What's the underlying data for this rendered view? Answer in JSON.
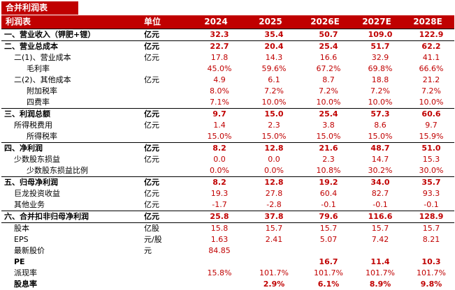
{
  "title": "合并利润表",
  "header": {
    "label": "利润表",
    "unit": "单位",
    "years": [
      "2024",
      "2025",
      "2026E",
      "2027E",
      "2028E"
    ]
  },
  "rows": [
    {
      "label": "一、营业收入（钾肥+锂）",
      "unit": "亿元",
      "values": [
        "32.3",
        "35.4",
        "50.7",
        "109.0",
        "122.9"
      ],
      "style": "major"
    },
    {
      "label": "二、营业总成本",
      "unit": "亿元",
      "values": [
        "22.7",
        "20.4",
        "25.4",
        "51.7",
        "62.2"
      ],
      "style": "major"
    },
    {
      "label": "二(1)、营业成本",
      "unit": "亿元",
      "values": [
        "17.8",
        "14.3",
        "16.6",
        "32.9",
        "41.1"
      ],
      "style": "minor1"
    },
    {
      "label": "毛利率",
      "unit": "",
      "values": [
        "45.0%",
        "59.6%",
        "67.2%",
        "69.8%",
        "66.6%"
      ],
      "style": "minor2"
    },
    {
      "label": "二(2)、其他成本",
      "unit": "亿元",
      "values": [
        "4.9",
        "6.1",
        "8.7",
        "18.8",
        "21.2"
      ],
      "style": "minor1"
    },
    {
      "label": "附加税率",
      "unit": "",
      "values": [
        "8.0%",
        "7.2%",
        "7.2%",
        "7.2%",
        "7.2%"
      ],
      "style": "minor2"
    },
    {
      "label": "四费率",
      "unit": "",
      "values": [
        "7.1%",
        "10.0%",
        "10.0%",
        "10.0%",
        "10.0%"
      ],
      "style": "minor2"
    },
    {
      "label": "三、利润总额",
      "unit": "亿元",
      "values": [
        "9.7",
        "15.0",
        "25.4",
        "57.3",
        "60.6"
      ],
      "style": "major"
    },
    {
      "label": "所得税费用",
      "unit": "亿元",
      "values": [
        "1.4",
        "2.3",
        "3.8",
        "8.6",
        "9.7"
      ],
      "style": "minor1"
    },
    {
      "label": "所得税率",
      "unit": "",
      "values": [
        "15.0%",
        "15.0%",
        "15.0%",
        "15.0%",
        "15.9%"
      ],
      "style": "minor2"
    },
    {
      "label": "四、净利润",
      "unit": "亿元",
      "values": [
        "8.2",
        "12.8",
        "21.6",
        "48.7",
        "51.0"
      ],
      "style": "major"
    },
    {
      "label": "少数股东损益",
      "unit": "亿元",
      "values": [
        "0.0",
        "0.0",
        "2.3",
        "14.7",
        "15.3"
      ],
      "style": "minor1"
    },
    {
      "label": "少数股东损益比例",
      "unit": "",
      "values": [
        "0.0%",
        "0.0%",
        "10.8%",
        "30.2%",
        "30.0%"
      ],
      "style": "minor2"
    },
    {
      "label": "五、归母净利润",
      "unit": "亿元",
      "values": [
        "8.2",
        "12.8",
        "19.2",
        "34.0",
        "35.7"
      ],
      "style": "major"
    },
    {
      "label": "巨龙投资收益",
      "unit": "亿元",
      "values": [
        "19.3",
        "27.8",
        "60.4",
        "82.7",
        "93.3"
      ],
      "style": "minor1"
    },
    {
      "label": "其他业务",
      "unit": "亿元",
      "values": [
        "-1.7",
        "-2.8",
        "-0.1",
        "-0.1",
        "-0.1"
      ],
      "style": "minor1"
    },
    {
      "label": "六、合并扣非归母净利润",
      "unit": "亿元",
      "values": [
        "25.8",
        "37.8",
        "79.6",
        "116.6",
        "128.9"
      ],
      "style": "major"
    },
    {
      "label": "股本",
      "unit": "亿股",
      "values": [
        "15.8",
        "15.7",
        "15.7",
        "15.7",
        "15.7"
      ],
      "style": "base"
    },
    {
      "label": "EPS",
      "unit": "元/股",
      "values": [
        "1.63",
        "2.41",
        "5.07",
        "7.42",
        "8.21"
      ],
      "style": "base"
    },
    {
      "label": "最新股价",
      "unit": "元",
      "values": [
        "84.85",
        "",
        "",
        "",
        ""
      ],
      "style": "base"
    },
    {
      "label": "PE",
      "unit": "",
      "values": [
        "",
        "",
        "16.7",
        "11.4",
        "10.3"
      ],
      "style": "pe"
    },
    {
      "label": "派现率",
      "unit": "",
      "values": [
        "15.8%",
        "101.7%",
        "101.7%",
        "101.7%",
        "101.7%"
      ],
      "style": "base"
    },
    {
      "label": "股息率",
      "unit": "",
      "values": [
        "",
        "2.9%",
        "6.1%",
        "8.9%",
        "9.8%"
      ],
      "style": "pe"
    }
  ],
  "colors": {
    "accent": "#c00000",
    "marker": "#3a9a3a"
  }
}
